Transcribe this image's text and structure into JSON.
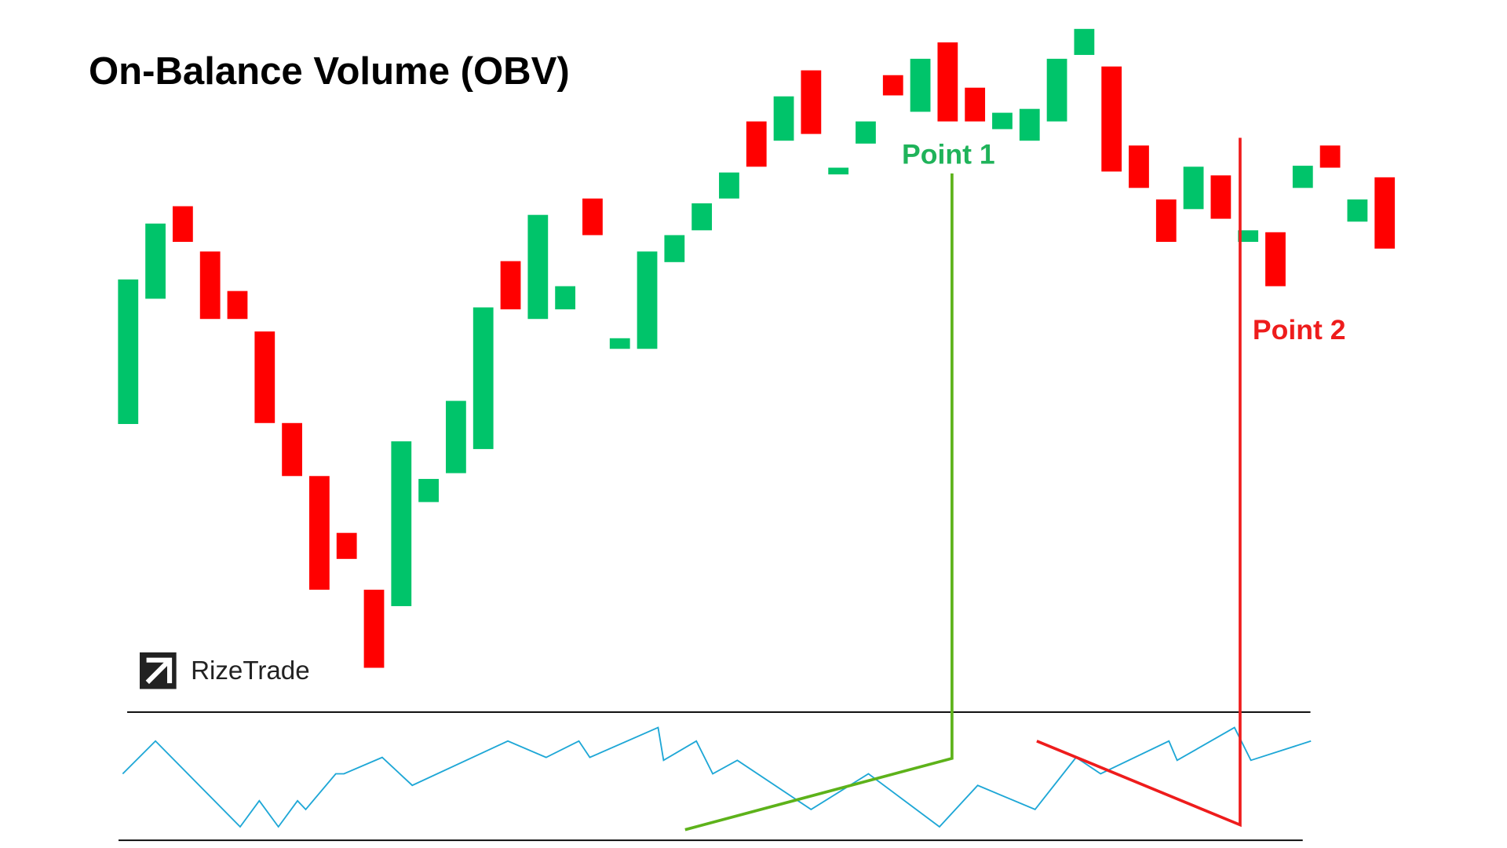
{
  "chart_data": {
    "type": "candlestick",
    "title": "On-Balance Volume (OBV)",
    "annotations": [
      "Point 1",
      "Point 2"
    ],
    "brand": "RizeTrade",
    "up_color": "#00c46a",
    "down_color": "#ff0000",
    "ylim": [
      0,
      700
    ],
    "open": [
      280,
      410,
      506,
      459,
      418,
      376,
      281,
      226,
      167,
      108,
      91,
      199,
      229,
      254,
      449,
      389,
      399,
      514,
      358,
      358,
      448,
      481,
      514,
      594,
      574,
      647,
      539,
      571,
      642,
      604,
      676,
      629,
      586,
      574,
      594,
      663,
      651,
      569,
      513,
      503,
      538,
      469,
      479,
      525,
      569,
      490,
      536
    ],
    "close": [
      430,
      488,
      469,
      389,
      389,
      281,
      226,
      108,
      140,
      27,
      262,
      223,
      304,
      401,
      399,
      497,
      423,
      476,
      369,
      459,
      476,
      509,
      541,
      547,
      620,
      581,
      546,
      594,
      621,
      659,
      594,
      594,
      603,
      607,
      659,
      690,
      542,
      525,
      469,
      547,
      493,
      481,
      423,
      548,
      546,
      513,
      462
    ],
    "obv": {
      "color": "#1ea7d6",
      "y2lim": [
        0,
        130
      ],
      "x": [
        -0.2,
        1.0,
        4.1,
        4.8,
        5.5,
        6.2,
        6.5,
        7.6,
        7.9,
        9.3,
        10.4,
        13.9,
        15.3,
        16.5,
        16.9,
        19.4,
        19.6,
        20.8,
        21.4,
        22.3,
        25.0,
        27.1,
        29.7,
        31.1,
        33.2,
        34.7,
        35.6,
        38.1,
        38.4,
        40.5,
        41.1,
        43.3
      ],
      "values": [
        67,
        101,
        12,
        39,
        12,
        39,
        30,
        67,
        67,
        84,
        55,
        101,
        84,
        101,
        84,
        115,
        81,
        101,
        67,
        81,
        30,
        67,
        12,
        55,
        30,
        84,
        67,
        101,
        81,
        115,
        81,
        101
      ]
    }
  }
}
